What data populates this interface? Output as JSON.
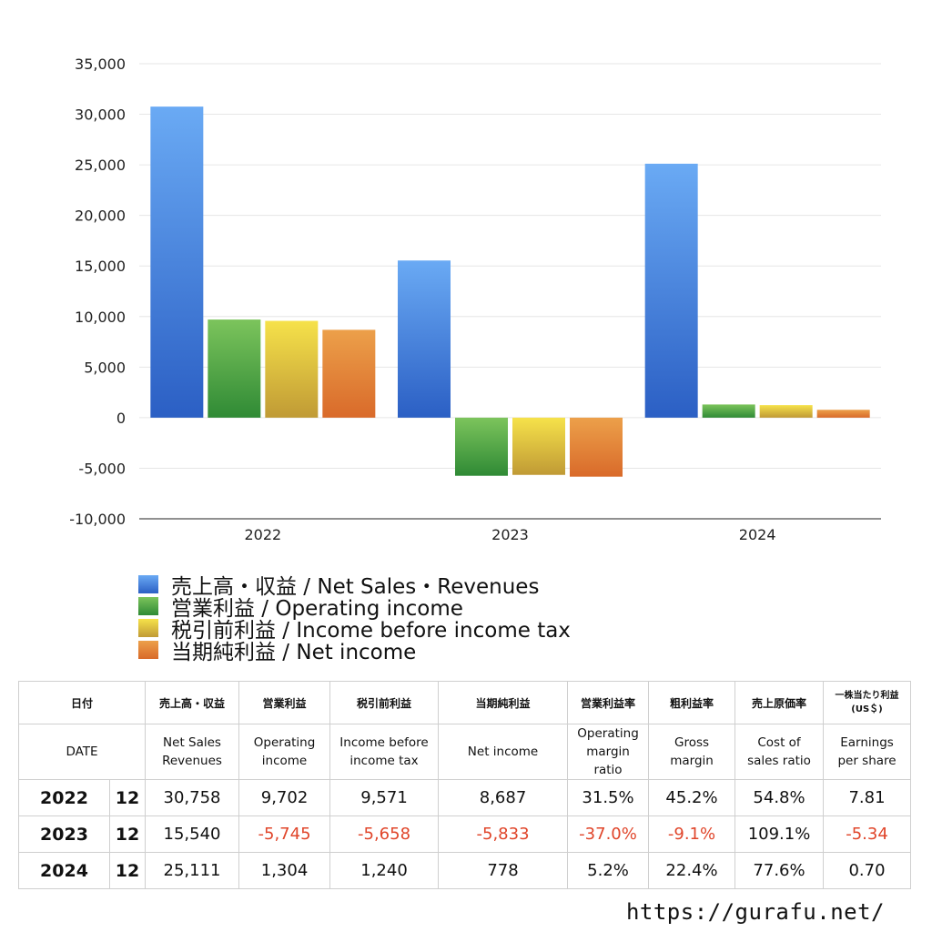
{
  "chart_data": {
    "type": "bar",
    "categories": [
      "2022",
      "2023",
      "2024"
    ],
    "series": [
      {
        "name": "売上高・収益 / Net Sales・Revenues",
        "values": [
          30758,
          15540,
          25111
        ],
        "color": "#3f7fdc"
      },
      {
        "name": "営業利益 / Operating income",
        "values": [
          9702,
          -5745,
          1304
        ],
        "color": "#3f9f3f"
      },
      {
        "name": "税引前利益 / Income before income tax",
        "values": [
          9571,
          -5658,
          1240
        ],
        "color": "#d9c23c"
      },
      {
        "name": "当期純利益 / Net income",
        "values": [
          8687,
          -5833,
          778
        ],
        "color": "#e07a30"
      }
    ],
    "ylim": [
      -10000,
      35000
    ],
    "yticks": [
      35000,
      30000,
      25000,
      20000,
      15000,
      10000,
      5000,
      0,
      -5000,
      -10000
    ],
    "ytick_labels": [
      "35,000",
      "30,000",
      "25,000",
      "20,000",
      "15,000",
      "10,000",
      "5,000",
      "0",
      "-5,000",
      "-10,000"
    ],
    "grid": true,
    "legend_position": "bottom-left"
  },
  "table": {
    "headers_ja": [
      "日付",
      "売上高・収益",
      "営業利益",
      "税引前利益",
      "当期純利益",
      "営業利益率",
      "粗利益率",
      "売上原価率",
      "一株当たり利益"
    ],
    "eps_unit": "(US＄)",
    "headers_en": [
      "DATE",
      "Net Sales",
      "Revenues",
      "Operating",
      "income",
      "Income before",
      "income tax",
      "Net income",
      "Operating",
      "margin",
      "ratio",
      "Gross",
      "margin",
      "Cost of",
      "sales ratio",
      "Earnings",
      "per share"
    ],
    "rows": [
      {
        "year": "2022",
        "month": "12",
        "sales": "30,758",
        "op": "9,702",
        "pretax": "9,571",
        "net": "8,687",
        "op_margin": "31.5%",
        "gross": "45.2%",
        "cost": "54.8%",
        "eps": "7.81"
      },
      {
        "year": "2023",
        "month": "12",
        "sales": "15,540",
        "op": "-5,745",
        "pretax": "-5,658",
        "net": "-5,833",
        "op_margin": "-37.0%",
        "gross": "-9.1%",
        "cost": "109.1%",
        "eps": "-5.34"
      },
      {
        "year": "2024",
        "month": "12",
        "sales": "25,111",
        "op": "1,304",
        "pretax": "1,240",
        "net": "778",
        "op_margin": "5.2%",
        "gross": "22.4%",
        "cost": "77.6%",
        "eps": "0.70"
      }
    ]
  },
  "site": "https://gurafu.net/"
}
